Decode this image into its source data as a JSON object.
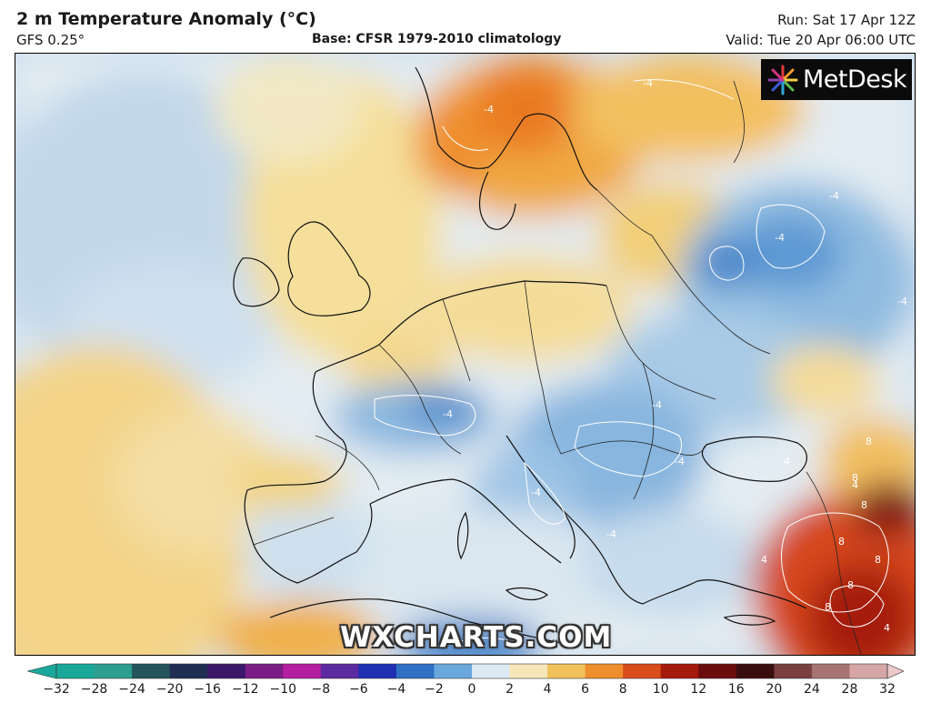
{
  "header": {
    "title": "2 m Temperature Anomaly (°C)",
    "model": "GFS 0.25°",
    "base": "Base: CFSR 1979-2010 climatology",
    "run": "Run: Sat 17 Apr 12Z",
    "valid": "Valid: Tue 20 Apr 06:00 UTC"
  },
  "logo": {
    "text": "MetDesk",
    "icon": "metdesk-starburst-icon"
  },
  "watermark": "WXCHARTS.COM",
  "map": {
    "contour_labels": [
      "-4",
      "-4",
      "-4",
      "-4",
      "-4",
      "-4",
      "-4",
      "-4",
      "-4",
      "-4",
      "4",
      "4",
      "4",
      "4",
      "8",
      "8",
      "8",
      "8",
      "8",
      "8",
      "8"
    ]
  },
  "legend": {
    "ticks": [
      "−32",
      "−28",
      "−24",
      "−20",
      "−16",
      "−12",
      "−10",
      "−8",
      "−6",
      "−4",
      "−2",
      "0",
      "2",
      "4",
      "6",
      "8",
      "10",
      "12",
      "16",
      "20",
      "24",
      "28",
      "32"
    ],
    "colors": [
      "#1aa89a",
      "#2d9e8f",
      "#24555d",
      "#1f2e52",
      "#3a1768",
      "#7a1e86",
      "#b51fa1",
      "#5b2aa0",
      "#1f2fb4",
      "#2f6fc4",
      "#6aa8dc",
      "#dce9f2",
      "#f6e6b8",
      "#f1c15b",
      "#ef8e2d",
      "#d94d1b",
      "#a51a0c",
      "#6b0d0d",
      "#3a0e0e",
      "#7a3f3f",
      "#a87373",
      "#d6a6a6",
      "#ecc8c8"
    ]
  }
}
